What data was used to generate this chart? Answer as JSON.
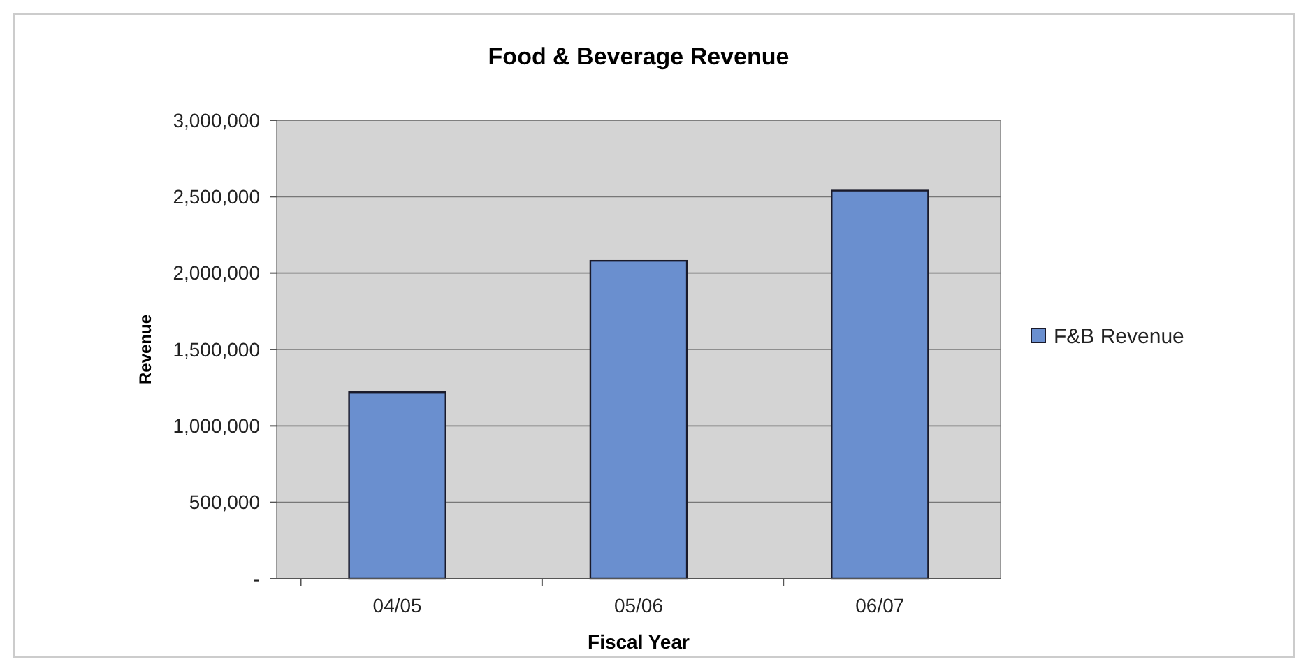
{
  "chart_data": {
    "type": "bar",
    "title": "Food & Beverage Revenue",
    "xlabel": "Fiscal Year",
    "ylabel": "Revenue",
    "categories": [
      "04/05",
      "05/06",
      "06/07"
    ],
    "series": [
      {
        "name": "F&B Revenue",
        "color": "#6a8fcf",
        "values": [
          1220000,
          2080000,
          2540000
        ]
      }
    ],
    "ylim": [
      0,
      3000000
    ],
    "yticks": [
      {
        "value": 0,
        "label": "-"
      },
      {
        "value": 500000,
        "label": "500,000"
      },
      {
        "value": 1000000,
        "label": "1,000,000"
      },
      {
        "value": 1500000,
        "label": "1,500,000"
      },
      {
        "value": 2000000,
        "label": "2,000,000"
      },
      {
        "value": 2500000,
        "label": "2,500,000"
      },
      {
        "value": 3000000,
        "label": "3,000,000"
      }
    ],
    "grid": "y",
    "legend": "right"
  }
}
